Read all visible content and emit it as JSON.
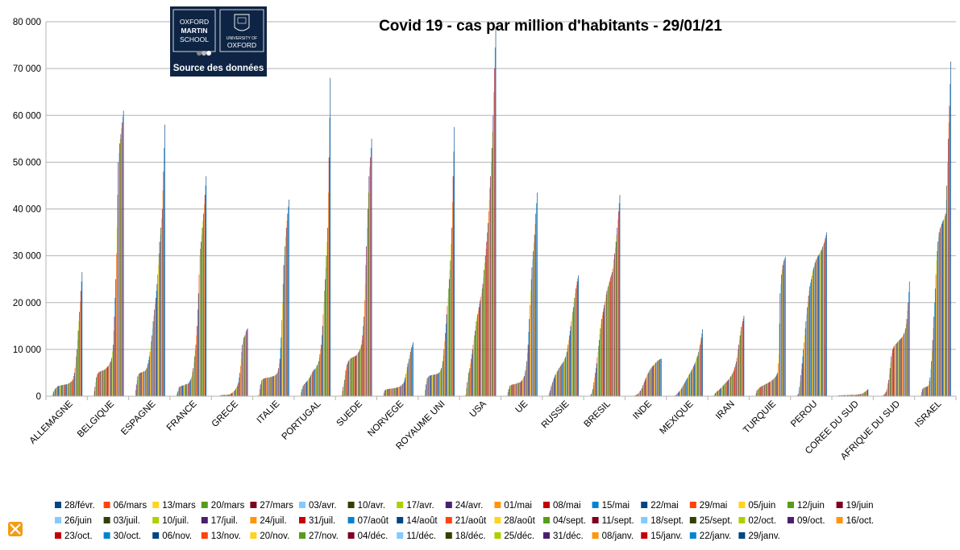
{
  "logo": {
    "left_lines": [
      "OXFORD",
      "MARTIN",
      "SCHOOL"
    ],
    "right_lines": [
      "UNIVERSITY OF",
      "OXFORD"
    ],
    "caption": "Source des données",
    "bg_color": "#0e2444"
  },
  "chart_data": {
    "type": "bar",
    "title": "Covid 19 - cas par  million d'habitants - 29/01/21",
    "xlabel": "",
    "ylabel": "",
    "ylim": [
      0,
      80000
    ],
    "yticks": [
      0,
      10000,
      20000,
      30000,
      40000,
      50000,
      60000,
      70000,
      80000
    ],
    "ytick_labels": [
      "0",
      "10 000",
      "20 000",
      "30 000",
      "40 000",
      "50 000",
      "60 000",
      "70 000",
      "80 000"
    ],
    "grid": "horizontal",
    "legend_position": "bottom",
    "categories": [
      "ALLEMAGNE",
      "BELGIQUE",
      "ESPAGNE",
      "FRANCE",
      "GRECE",
      "ITALIE",
      "PORTUGAL",
      "SUEDE",
      "NORVEGE",
      "ROYAUME UNI",
      "USA",
      "UE",
      "RUSSIE",
      "BRESIL",
      "INDE",
      "MEXIQUE",
      "IRAN",
      "TURQUIE",
      "PEROU",
      "COREE DU SUD",
      "AFRIQUE DU SUD",
      "ISRAEL"
    ],
    "series_dates": [
      "28/févr.",
      "06/mars",
      "13/mars",
      "20/mars",
      "27/mars",
      "03/avr.",
      "10/avr.",
      "17/avr.",
      "24/avr.",
      "01/mai",
      "08/mai",
      "15/mai",
      "22/mai",
      "29/mai",
      "05/juin",
      "12/juin",
      "19/juin",
      "26/juin",
      "03/juil.",
      "10/juil.",
      "17/juil.",
      "24/juil.",
      "31/juil.",
      "07/août",
      "14/août",
      "21/août",
      "28/août",
      "04/sept.",
      "11/sept.",
      "18/sept.",
      "25/sept.",
      "02/oct.",
      "09/oct.",
      "16/oct.",
      "23/oct.",
      "30/oct.",
      "06/nov.",
      "13/nov.",
      "20/nov.",
      "27/nov.",
      "04/déc.",
      "11/déc.",
      "18/déc.",
      "25/déc.",
      "31/déc.",
      "08/janv.",
      "15/janv.",
      "22/janv.",
      "29/janv."
    ],
    "series_colors": [
      "#004586",
      "#ff420e",
      "#ffd320",
      "#579d1c",
      "#7e0021",
      "#83caff",
      "#314004",
      "#aecf00",
      "#4b1f6f",
      "#ff950e",
      "#c5000b",
      "#0084d1"
    ],
    "checkpoint_weeks": [
      0,
      2,
      4,
      6,
      8,
      10,
      12,
      14,
      16,
      18,
      20,
      22,
      24,
      26,
      28,
      30,
      32,
      34,
      36,
      38,
      40,
      42,
      44,
      46,
      48
    ],
    "country_checkpoints": {
      "ALLEMAGNE": [
        0,
        100,
        1000,
        1500,
        1800,
        2100,
        2200,
        2300,
        2350,
        2400,
        2450,
        2500,
        2550,
        2600,
        2800,
        3000,
        3200,
        3600,
        5000,
        7000,
        10000,
        14000,
        18000,
        22500,
        26500
      ],
      "BELGIQUE": [
        0,
        200,
        2000,
        4000,
        4800,
        5100,
        5300,
        5400,
        5500,
        5600,
        5800,
        6100,
        6400,
        6800,
        7400,
        8200,
        11000,
        17000,
        25000,
        36000,
        50000,
        54000,
        56000,
        58500,
        61000
      ],
      "ESPAGNE": [
        0,
        100,
        2500,
        4200,
        4800,
        5000,
        5100,
        5200,
        5300,
        5500,
        6000,
        7000,
        8500,
        10500,
        13000,
        16000,
        18500,
        21000,
        24000,
        28000,
        33000,
        36000,
        40000,
        48000,
        58000
      ],
      "FRANCE": [
        0,
        100,
        1000,
        1900,
        2100,
        2200,
        2300,
        2400,
        2500,
        2600,
        2700,
        3000,
        3600,
        4500,
        6000,
        8500,
        11000,
        15000,
        22000,
        30000,
        33000,
        36000,
        39000,
        43000,
        47000
      ],
      "GRECE": [
        0,
        0,
        50,
        200,
        250,
        250,
        300,
        300,
        300,
        350,
        400,
        500,
        700,
        900,
        1200,
        1600,
        2200,
        3000,
        5000,
        8000,
        11000,
        12500,
        13000,
        14000,
        14500
      ],
      "ITALIE": [
        0,
        500,
        2500,
        3400,
        3700,
        3800,
        3900,
        3950,
        4000,
        4000,
        4100,
        4200,
        4300,
        4400,
        4600,
        5000,
        6000,
        8000,
        12500,
        20000,
        28000,
        32000,
        36000,
        39000,
        42000
      ],
      "PORTUGAL": [
        0,
        100,
        1500,
        2200,
        2600,
        2900,
        3200,
        3500,
        4000,
        4500,
        5100,
        5500,
        5800,
        6100,
        6700,
        7500,
        9000,
        11000,
        15000,
        20000,
        25000,
        30000,
        36000,
        51000,
        68000
      ],
      "SUEDE": [
        0,
        300,
        2000,
        3500,
        5500,
        6800,
        7500,
        7900,
        8100,
        8300,
        8400,
        8500,
        8700,
        9000,
        9500,
        10000,
        11000,
        13000,
        17000,
        24000,
        32000,
        40000,
        47000,
        51000,
        55000
      ],
      "NORVEGE": [
        0,
        200,
        1200,
        1400,
        1500,
        1550,
        1600,
        1600,
        1650,
        1700,
        1750,
        1800,
        1900,
        2000,
        2100,
        2300,
        2600,
        3000,
        4000,
        5500,
        7000,
        8000,
        9500,
        10500,
        11500
      ],
      "ROYAUME UNI": [
        0,
        200,
        2500,
        3800,
        4200,
        4400,
        4500,
        4550,
        4600,
        4650,
        4700,
        4800,
        5000,
        5300,
        6000,
        7500,
        10000,
        13500,
        17500,
        21000,
        25000,
        29000,
        36000,
        47000,
        57500
      ],
      "USA": [
        0,
        500,
        3000,
        5000,
        6000,
        8000,
        10000,
        12000,
        14000,
        16000,
        17500,
        19000,
        20500,
        22000,
        24000,
        27000,
        30000,
        33000,
        37000,
        42000,
        47000,
        53000,
        60000,
        70000,
        79000
      ],
      "UE": [
        0,
        200,
        1500,
        2200,
        2400,
        2500,
        2550,
        2600,
        2700,
        2800,
        2900,
        3000,
        3300,
        3700,
        4300,
        5500,
        7500,
        11000,
        16500,
        22500,
        27500,
        31000,
        34500,
        39000,
        43500
      ],
      "RUSSIE": [
        0,
        300,
        1200,
        2200,
        3000,
        3800,
        4500,
        5000,
        5500,
        6000,
        6400,
        6800,
        7200,
        7700,
        8400,
        9500,
        11000,
        13000,
        15000,
        17000,
        19000,
        21000,
        23000,
        24500,
        25800
      ],
      "BRESIL": [
        0,
        100,
        500,
        1500,
        3000,
        5000,
        7000,
        9500,
        12000,
        14500,
        16500,
        18000,
        19500,
        21000,
        22500,
        23500,
        24500,
        25500,
        26500,
        28000,
        30500,
        33000,
        36000,
        39500,
        43000
      ],
      "INDE": [
        0,
        0,
        50,
        100,
        200,
        300,
        500,
        800,
        1200,
        1700,
        2400,
        3100,
        3800,
        4400,
        5000,
        5500,
        5900,
        6300,
        6600,
        6900,
        7200,
        7500,
        7700,
        7900,
        8000
      ],
      "MEXIQUE": [
        0,
        0,
        50,
        200,
        400,
        700,
        1000,
        1400,
        1800,
        2300,
        2800,
        3300,
        3800,
        4300,
        4800,
        5300,
        5800,
        6400,
        7000,
        7800,
        8600,
        9500,
        11000,
        12500,
        14300
      ],
      "IRAN": [
        0,
        300,
        700,
        1000,
        1200,
        1400,
        1700,
        2000,
        2300,
        2600,
        2900,
        3200,
        3500,
        3900,
        4300,
        4800,
        5400,
        6200,
        7400,
        9000,
        11000,
        13000,
        14800,
        16000,
        17200
      ],
      "TURQUIE": [
        0,
        200,
        1200,
        1500,
        1800,
        2000,
        2200,
        2300,
        2450,
        2600,
        2750,
        2900,
        3050,
        3250,
        3450,
        3700,
        4000,
        4400,
        5000,
        9000,
        22000,
        26000,
        28000,
        29000,
        29800
      ],
      "PEROU": [
        0,
        100,
        500,
        2000,
        4500,
        7000,
        10000,
        13000,
        16000,
        19000,
        21500,
        23500,
        25000,
        26500,
        27500,
        28500,
        29200,
        29800,
        30200,
        30700,
        31300,
        32000,
        32800,
        33800,
        35000
      ],
      "COREE DU SUD": [
        0,
        150,
        180,
        200,
        210,
        220,
        230,
        240,
        250,
        260,
        270,
        280,
        290,
        300,
        320,
        340,
        370,
        400,
        450,
        520,
        600,
        800,
        1000,
        1200,
        1500
      ],
      "AFRIQUE DU SUD": [
        0,
        0,
        50,
        100,
        200,
        500,
        1000,
        2000,
        3500,
        6000,
        8500,
        10000,
        10600,
        11000,
        11300,
        11600,
        11900,
        12200,
        12500,
        12900,
        13500,
        14500,
        16500,
        20000,
        24500
      ],
      "ISRAEL": [
        0,
        300,
        1500,
        1800,
        1900,
        2000,
        2100,
        2500,
        4000,
        7500,
        12000,
        17000,
        23000,
        29000,
        33000,
        35000,
        36000,
        36800,
        37500,
        38000,
        39000,
        45000,
        55000,
        62000,
        71500
      ]
    }
  }
}
